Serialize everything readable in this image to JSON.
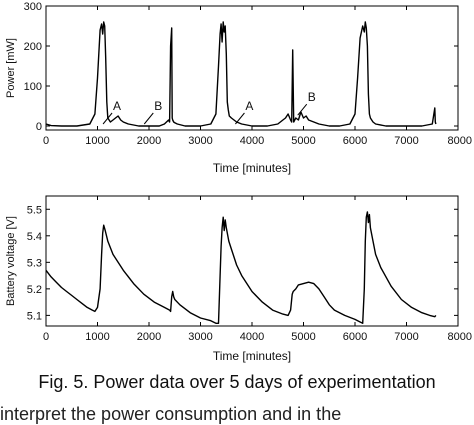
{
  "caption": "Fig. 5. Power data over 5 days of experimentation",
  "bottom_text": "interpret the power consumption and in the",
  "chart_data": [
    {
      "type": "line",
      "xlabel": "Time [minutes]",
      "ylabel": "Power [mW]",
      "xlim": [
        0,
        8000
      ],
      "ylim": [
        -10,
        300
      ],
      "xticks": [
        0,
        1000,
        2000,
        3000,
        4000,
        5000,
        6000,
        7000,
        8000
      ],
      "xtick_labels": [
        "0",
        "1000",
        "2000",
        "3000",
        "4000",
        "5000",
        "6000",
        "7000",
        "8000"
      ],
      "yticks": [
        0,
        100,
        200,
        300
      ],
      "ytick_labels": [
        "0",
        "100",
        "200",
        "300"
      ],
      "grid": false,
      "series": [
        {
          "x": [
            0,
            100,
            300,
            600,
            850,
            950,
            1000,
            1050,
            1080,
            1100,
            1120,
            1140,
            1160,
            1180,
            1200,
            1250,
            1300,
            1350,
            1400,
            1450,
            1500,
            1600,
            1800,
            2000,
            2200,
            2300,
            2380,
            2400,
            2420,
            2440,
            2450,
            2460,
            2480,
            2500,
            2550,
            2700,
            3000,
            3200,
            3300,
            3350,
            3380,
            3400,
            3420,
            3440,
            3460,
            3480,
            3500,
            3520,
            3540,
            3560,
            3600,
            3650,
            3700,
            3800,
            4000,
            4300,
            4500,
            4600,
            4650,
            4700,
            4750,
            4770,
            4790,
            4810,
            4850,
            4900,
            4950,
            5000,
            5050,
            5100,
            5200,
            5300,
            5500,
            5700,
            5900,
            6000,
            6050,
            6100,
            6150,
            6180,
            6200,
            6220,
            6240,
            6260,
            6280,
            6300,
            6350,
            6400,
            6600,
            7000,
            7300,
            7500,
            7550,
            7560,
            7570
          ],
          "y": [
            5,
            1,
            0,
            0,
            5,
            30,
            120,
            240,
            255,
            230,
            260,
            250,
            170,
            60,
            20,
            10,
            15,
            20,
            25,
            15,
            10,
            5,
            0,
            0,
            0,
            5,
            15,
            10,
            200,
            245,
            20,
            15,
            10,
            8,
            5,
            0,
            0,
            5,
            30,
            150,
            230,
            255,
            210,
            260,
            235,
            250,
            180,
            60,
            40,
            25,
            20,
            15,
            10,
            5,
            0,
            0,
            5,
            15,
            20,
            30,
            15,
            10,
            190,
            10,
            20,
            15,
            35,
            20,
            25,
            15,
            10,
            5,
            0,
            0,
            5,
            30,
            120,
            220,
            250,
            235,
            260,
            245,
            200,
            80,
            30,
            20,
            10,
            5,
            0,
            0,
            0,
            5,
            45,
            10,
            5
          ]
        }
      ],
      "annotations": [
        {
          "text": "A",
          "x": 1380,
          "y": 40
        },
        {
          "text": "B",
          "x": 2180,
          "y": 40
        },
        {
          "text": "A",
          "x": 3950,
          "y": 40
        },
        {
          "text": "B",
          "x": 5160,
          "y": 62
        }
      ]
    },
    {
      "type": "line",
      "xlabel": "Time [minutes]",
      "ylabel": "Battery voltage [V]",
      "xlim": [
        0,
        8000
      ],
      "ylim": [
        5.06,
        5.55
      ],
      "xticks": [
        0,
        1000,
        2000,
        3000,
        4000,
        5000,
        6000,
        7000,
        8000
      ],
      "xtick_labels": [
        "0",
        "1000",
        "2000",
        "3000",
        "4000",
        "5000",
        "6000",
        "7000",
        "8000"
      ],
      "yticks": [
        5.1,
        5.2,
        5.3,
        5.4,
        5.5
      ],
      "ytick_labels": [
        "5.1",
        "5.2",
        "5.3",
        "5.4",
        "5.5"
      ],
      "grid": false,
      "series": [
        {
          "x": [
            0,
            100,
            200,
            300,
            400,
            500,
            600,
            700,
            800,
            900,
            950,
            1000,
            1050,
            1080,
            1100,
            1120,
            1150,
            1200,
            1300,
            1500,
            1700,
            1900,
            2100,
            2300,
            2400,
            2420,
            2440,
            2460,
            2480,
            2500,
            2600,
            2800,
            3000,
            3200,
            3300,
            3350,
            3380,
            3400,
            3420,
            3440,
            3460,
            3480,
            3500,
            3550,
            3600,
            3700,
            3800,
            4000,
            4200,
            4400,
            4600,
            4700,
            4750,
            4780,
            4800,
            4850,
            4900,
            5000,
            5100,
            5200,
            5300,
            5400,
            5500,
            5600,
            5800,
            6000,
            6100,
            6150,
            6180,
            6200,
            6220,
            6240,
            6260,
            6280,
            6300,
            6350,
            6400,
            6500,
            6700,
            6900,
            7100,
            7300,
            7450,
            7550,
            7570
          ],
          "y": [
            5.27,
            5.245,
            5.225,
            5.205,
            5.19,
            5.175,
            5.16,
            5.145,
            5.13,
            5.12,
            5.115,
            5.13,
            5.2,
            5.33,
            5.41,
            5.44,
            5.42,
            5.38,
            5.33,
            5.27,
            5.22,
            5.18,
            5.15,
            5.13,
            5.12,
            5.115,
            5.17,
            5.19,
            5.17,
            5.16,
            5.14,
            5.11,
            5.09,
            5.08,
            5.07,
            5.07,
            5.25,
            5.36,
            5.43,
            5.47,
            5.42,
            5.46,
            5.43,
            5.38,
            5.35,
            5.29,
            5.25,
            5.19,
            5.15,
            5.12,
            5.105,
            5.1,
            5.12,
            5.18,
            5.19,
            5.2,
            5.215,
            5.22,
            5.225,
            5.22,
            5.2,
            5.17,
            5.14,
            5.12,
            5.1,
            5.085,
            5.075,
            5.07,
            5.2,
            5.38,
            5.47,
            5.49,
            5.45,
            5.48,
            5.43,
            5.38,
            5.33,
            5.28,
            5.21,
            5.16,
            5.13,
            5.11,
            5.1,
            5.095,
            5.1
          ]
        }
      ],
      "annotations": []
    }
  ]
}
